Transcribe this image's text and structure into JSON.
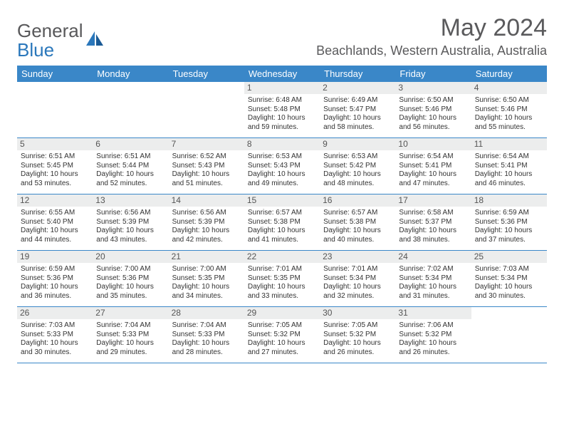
{
  "logo": {
    "text1": "General",
    "text2": "Blue"
  },
  "title": "May 2024",
  "location": "Beachlands, Western Australia, Australia",
  "colors": {
    "header_bg": "#3a87c8",
    "daynum_bg": "#eceded",
    "text": "#333333",
    "title_color": "#5a5a5c",
    "logo_blue": "#2a77bb",
    "logo_gray": "#58585a",
    "row_border": "#3a87c8"
  },
  "day_names": [
    "Sunday",
    "Monday",
    "Tuesday",
    "Wednesday",
    "Thursday",
    "Friday",
    "Saturday"
  ],
  "weeks": [
    [
      null,
      null,
      null,
      {
        "n": "1",
        "sr": "Sunrise: 6:48 AM",
        "ss": "Sunset: 5:48 PM",
        "dl1": "Daylight: 10 hours",
        "dl2": "and 59 minutes."
      },
      {
        "n": "2",
        "sr": "Sunrise: 6:49 AM",
        "ss": "Sunset: 5:47 PM",
        "dl1": "Daylight: 10 hours",
        "dl2": "and 58 minutes."
      },
      {
        "n": "3",
        "sr": "Sunrise: 6:50 AM",
        "ss": "Sunset: 5:46 PM",
        "dl1": "Daylight: 10 hours",
        "dl2": "and 56 minutes."
      },
      {
        "n": "4",
        "sr": "Sunrise: 6:50 AM",
        "ss": "Sunset: 5:46 PM",
        "dl1": "Daylight: 10 hours",
        "dl2": "and 55 minutes."
      }
    ],
    [
      {
        "n": "5",
        "sr": "Sunrise: 6:51 AM",
        "ss": "Sunset: 5:45 PM",
        "dl1": "Daylight: 10 hours",
        "dl2": "and 53 minutes."
      },
      {
        "n": "6",
        "sr": "Sunrise: 6:51 AM",
        "ss": "Sunset: 5:44 PM",
        "dl1": "Daylight: 10 hours",
        "dl2": "and 52 minutes."
      },
      {
        "n": "7",
        "sr": "Sunrise: 6:52 AM",
        "ss": "Sunset: 5:43 PM",
        "dl1": "Daylight: 10 hours",
        "dl2": "and 51 minutes."
      },
      {
        "n": "8",
        "sr": "Sunrise: 6:53 AM",
        "ss": "Sunset: 5:43 PM",
        "dl1": "Daylight: 10 hours",
        "dl2": "and 49 minutes."
      },
      {
        "n": "9",
        "sr": "Sunrise: 6:53 AM",
        "ss": "Sunset: 5:42 PM",
        "dl1": "Daylight: 10 hours",
        "dl2": "and 48 minutes."
      },
      {
        "n": "10",
        "sr": "Sunrise: 6:54 AM",
        "ss": "Sunset: 5:41 PM",
        "dl1": "Daylight: 10 hours",
        "dl2": "and 47 minutes."
      },
      {
        "n": "11",
        "sr": "Sunrise: 6:54 AM",
        "ss": "Sunset: 5:41 PM",
        "dl1": "Daylight: 10 hours",
        "dl2": "and 46 minutes."
      }
    ],
    [
      {
        "n": "12",
        "sr": "Sunrise: 6:55 AM",
        "ss": "Sunset: 5:40 PM",
        "dl1": "Daylight: 10 hours",
        "dl2": "and 44 minutes."
      },
      {
        "n": "13",
        "sr": "Sunrise: 6:56 AM",
        "ss": "Sunset: 5:39 PM",
        "dl1": "Daylight: 10 hours",
        "dl2": "and 43 minutes."
      },
      {
        "n": "14",
        "sr": "Sunrise: 6:56 AM",
        "ss": "Sunset: 5:39 PM",
        "dl1": "Daylight: 10 hours",
        "dl2": "and 42 minutes."
      },
      {
        "n": "15",
        "sr": "Sunrise: 6:57 AM",
        "ss": "Sunset: 5:38 PM",
        "dl1": "Daylight: 10 hours",
        "dl2": "and 41 minutes."
      },
      {
        "n": "16",
        "sr": "Sunrise: 6:57 AM",
        "ss": "Sunset: 5:38 PM",
        "dl1": "Daylight: 10 hours",
        "dl2": "and 40 minutes."
      },
      {
        "n": "17",
        "sr": "Sunrise: 6:58 AM",
        "ss": "Sunset: 5:37 PM",
        "dl1": "Daylight: 10 hours",
        "dl2": "and 38 minutes."
      },
      {
        "n": "18",
        "sr": "Sunrise: 6:59 AM",
        "ss": "Sunset: 5:36 PM",
        "dl1": "Daylight: 10 hours",
        "dl2": "and 37 minutes."
      }
    ],
    [
      {
        "n": "19",
        "sr": "Sunrise: 6:59 AM",
        "ss": "Sunset: 5:36 PM",
        "dl1": "Daylight: 10 hours",
        "dl2": "and 36 minutes."
      },
      {
        "n": "20",
        "sr": "Sunrise: 7:00 AM",
        "ss": "Sunset: 5:36 PM",
        "dl1": "Daylight: 10 hours",
        "dl2": "and 35 minutes."
      },
      {
        "n": "21",
        "sr": "Sunrise: 7:00 AM",
        "ss": "Sunset: 5:35 PM",
        "dl1": "Daylight: 10 hours",
        "dl2": "and 34 minutes."
      },
      {
        "n": "22",
        "sr": "Sunrise: 7:01 AM",
        "ss": "Sunset: 5:35 PM",
        "dl1": "Daylight: 10 hours",
        "dl2": "and 33 minutes."
      },
      {
        "n": "23",
        "sr": "Sunrise: 7:01 AM",
        "ss": "Sunset: 5:34 PM",
        "dl1": "Daylight: 10 hours",
        "dl2": "and 32 minutes."
      },
      {
        "n": "24",
        "sr": "Sunrise: 7:02 AM",
        "ss": "Sunset: 5:34 PM",
        "dl1": "Daylight: 10 hours",
        "dl2": "and 31 minutes."
      },
      {
        "n": "25",
        "sr": "Sunrise: 7:03 AM",
        "ss": "Sunset: 5:34 PM",
        "dl1": "Daylight: 10 hours",
        "dl2": "and 30 minutes."
      }
    ],
    [
      {
        "n": "26",
        "sr": "Sunrise: 7:03 AM",
        "ss": "Sunset: 5:33 PM",
        "dl1": "Daylight: 10 hours",
        "dl2": "and 30 minutes."
      },
      {
        "n": "27",
        "sr": "Sunrise: 7:04 AM",
        "ss": "Sunset: 5:33 PM",
        "dl1": "Daylight: 10 hours",
        "dl2": "and 29 minutes."
      },
      {
        "n": "28",
        "sr": "Sunrise: 7:04 AM",
        "ss": "Sunset: 5:33 PM",
        "dl1": "Daylight: 10 hours",
        "dl2": "and 28 minutes."
      },
      {
        "n": "29",
        "sr": "Sunrise: 7:05 AM",
        "ss": "Sunset: 5:32 PM",
        "dl1": "Daylight: 10 hours",
        "dl2": "and 27 minutes."
      },
      {
        "n": "30",
        "sr": "Sunrise: 7:05 AM",
        "ss": "Sunset: 5:32 PM",
        "dl1": "Daylight: 10 hours",
        "dl2": "and 26 minutes."
      },
      {
        "n": "31",
        "sr": "Sunrise: 7:06 AM",
        "ss": "Sunset: 5:32 PM",
        "dl1": "Daylight: 10 hours",
        "dl2": "and 26 minutes."
      },
      null
    ]
  ]
}
